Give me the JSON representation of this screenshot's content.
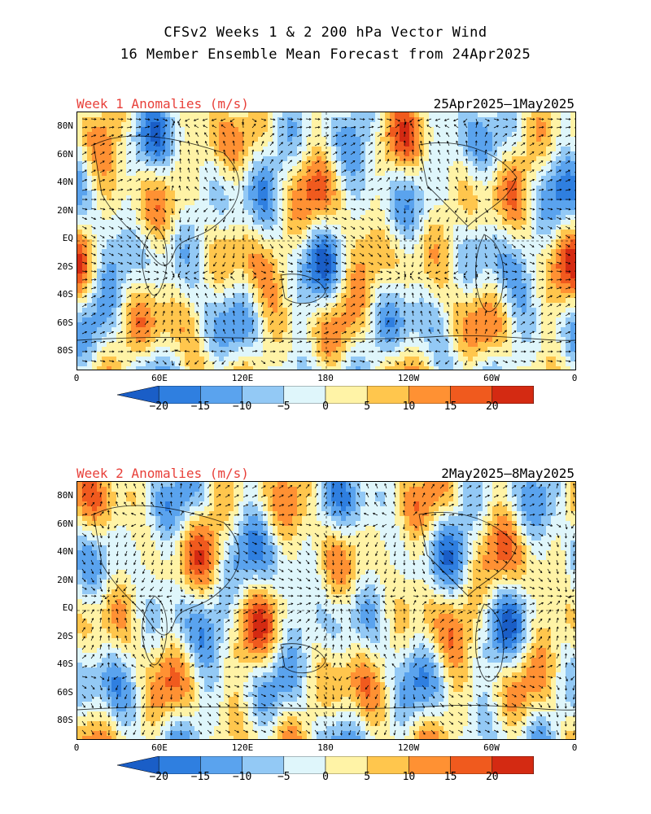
{
  "title_line1": "CFSv2 Weeks 1 & 2 200 hPa Vector Wind",
  "title_line2": "16 Member Ensemble Mean Forecast from 24Apr2025",
  "panels": [
    {
      "label": "Week 1 Anomalies (m/s)",
      "dates": "25Apr2025–1May2025",
      "seed": 7
    },
    {
      "label": "Week 2 Anomalies (m/s)",
      "dates": "2May2025–8May2025",
      "seed": 19
    }
  ],
  "lat_labels": [
    "80N",
    "60N",
    "40N",
    "20N",
    "EQ",
    "20S",
    "40S",
    "60S",
    "80S"
  ],
  "lon_labels": [
    "0",
    "60E",
    "120E",
    "180",
    "120W",
    "60W",
    "0"
  ],
  "colorbar": {
    "ticks": [
      "−20",
      "−15",
      "−10",
      "−5",
      "0",
      "5",
      "10",
      "15",
      "20"
    ],
    "colors": [
      "#1a5ec7",
      "#2f7fe0",
      "#5aa3ee",
      "#93c9f5",
      "#dff6fb",
      "#fff3a6",
      "#ffc64d",
      "#ff9133",
      "#f05a1e",
      "#d42a12",
      "#a40f0a"
    ]
  }
}
